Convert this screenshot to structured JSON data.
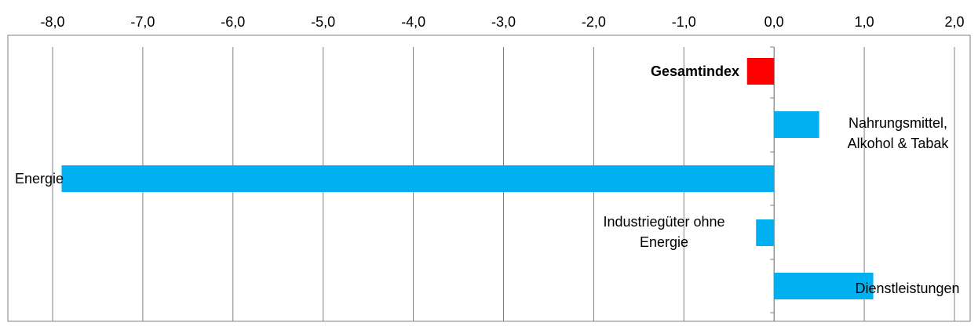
{
  "chart_data": {
    "type": "bar",
    "orientation": "horizontal",
    "categories": [
      "Gesamtindex",
      "Nahrungsmittel, Alkohol & Tabak",
      "Energie",
      "Industriegüter ohne Energie",
      "Dienstleistungen"
    ],
    "label_lines": [
      [
        "Gesamtindex"
      ],
      [
        "Nahrungsmittel,",
        "Alkohol & Tabak"
      ],
      [
        "Energie"
      ],
      [
        "Industriegüter ohne",
        "Energie"
      ],
      [
        "Dienstleistungen"
      ]
    ],
    "values": [
      -0.3,
      0.5,
      -7.9,
      -0.2,
      1.1
    ],
    "bar_colors": [
      "#ff0000",
      "#00b0f0",
      "#00b0f0",
      "#00b0f0",
      "#00b0f0"
    ],
    "label_bold": [
      true,
      false,
      false,
      false,
      false
    ],
    "xlim": [
      -8.0,
      2.0
    ],
    "xticks": [
      "-8,0",
      "-7,0",
      "-6,0",
      "-5,0",
      "-4,0",
      "-3,0",
      "-2,0",
      "-1,0",
      "0,0",
      "1,0",
      "2,0"
    ],
    "xtick_values": [
      -8,
      -7,
      -6,
      -5,
      -4,
      -3,
      -2,
      -1,
      0,
      1,
      2
    ],
    "tick_position": "top",
    "grid": true,
    "title": "",
    "xlabel": "",
    "ylabel": ""
  }
}
